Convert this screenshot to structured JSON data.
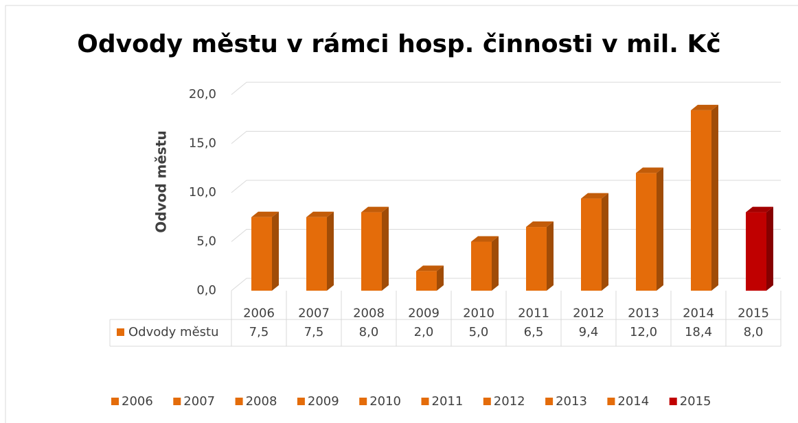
{
  "chart_data": {
    "type": "bar3d",
    "title": "Odvody městu v rámci hosp. činnosti v mil. Kč",
    "ylabel": "Odvod městu",
    "categories": [
      "2006",
      "2007",
      "2008",
      "2009",
      "2010",
      "2011",
      "2012",
      "2013",
      "2014",
      "2015"
    ],
    "series": [
      {
        "name": "Odvody městu",
        "color": "#e46c0a",
        "values": [
          7.5,
          7.5,
          8.0,
          2.0,
          5.0,
          6.5,
          9.4,
          12.0,
          18.4,
          8.0
        ],
        "value_labels": [
          "7,5",
          "7,5",
          "8,0",
          "2,0",
          "5,0",
          "6,5",
          "9,4",
          "12,0",
          "18,4",
          "8,0"
        ],
        "colors": [
          "#e46c0a",
          "#e46c0a",
          "#e46c0a",
          "#e46c0a",
          "#e46c0a",
          "#e46c0a",
          "#e46c0a",
          "#e46c0a",
          "#e46c0a",
          "#c00000"
        ]
      }
    ],
    "ylim": [
      0,
      20
    ],
    "yticks": [
      {
        "value": 0,
        "label": "0,0"
      },
      {
        "value": 5,
        "label": "5,0"
      },
      {
        "value": 10,
        "label": "10,0"
      },
      {
        "value": 15,
        "label": "15,0"
      },
      {
        "value": 20,
        "label": "20,0"
      }
    ],
    "grid": true,
    "data_table": true,
    "legend": "bottom"
  }
}
